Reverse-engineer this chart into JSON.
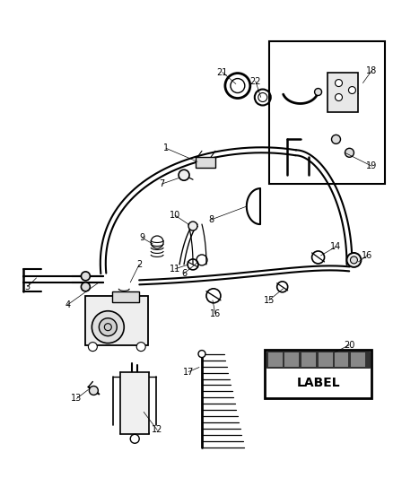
{
  "bg_color": "#ffffff",
  "line_color": "#000000",
  "fig_width": 4.38,
  "fig_height": 5.33,
  "dpi": 100
}
